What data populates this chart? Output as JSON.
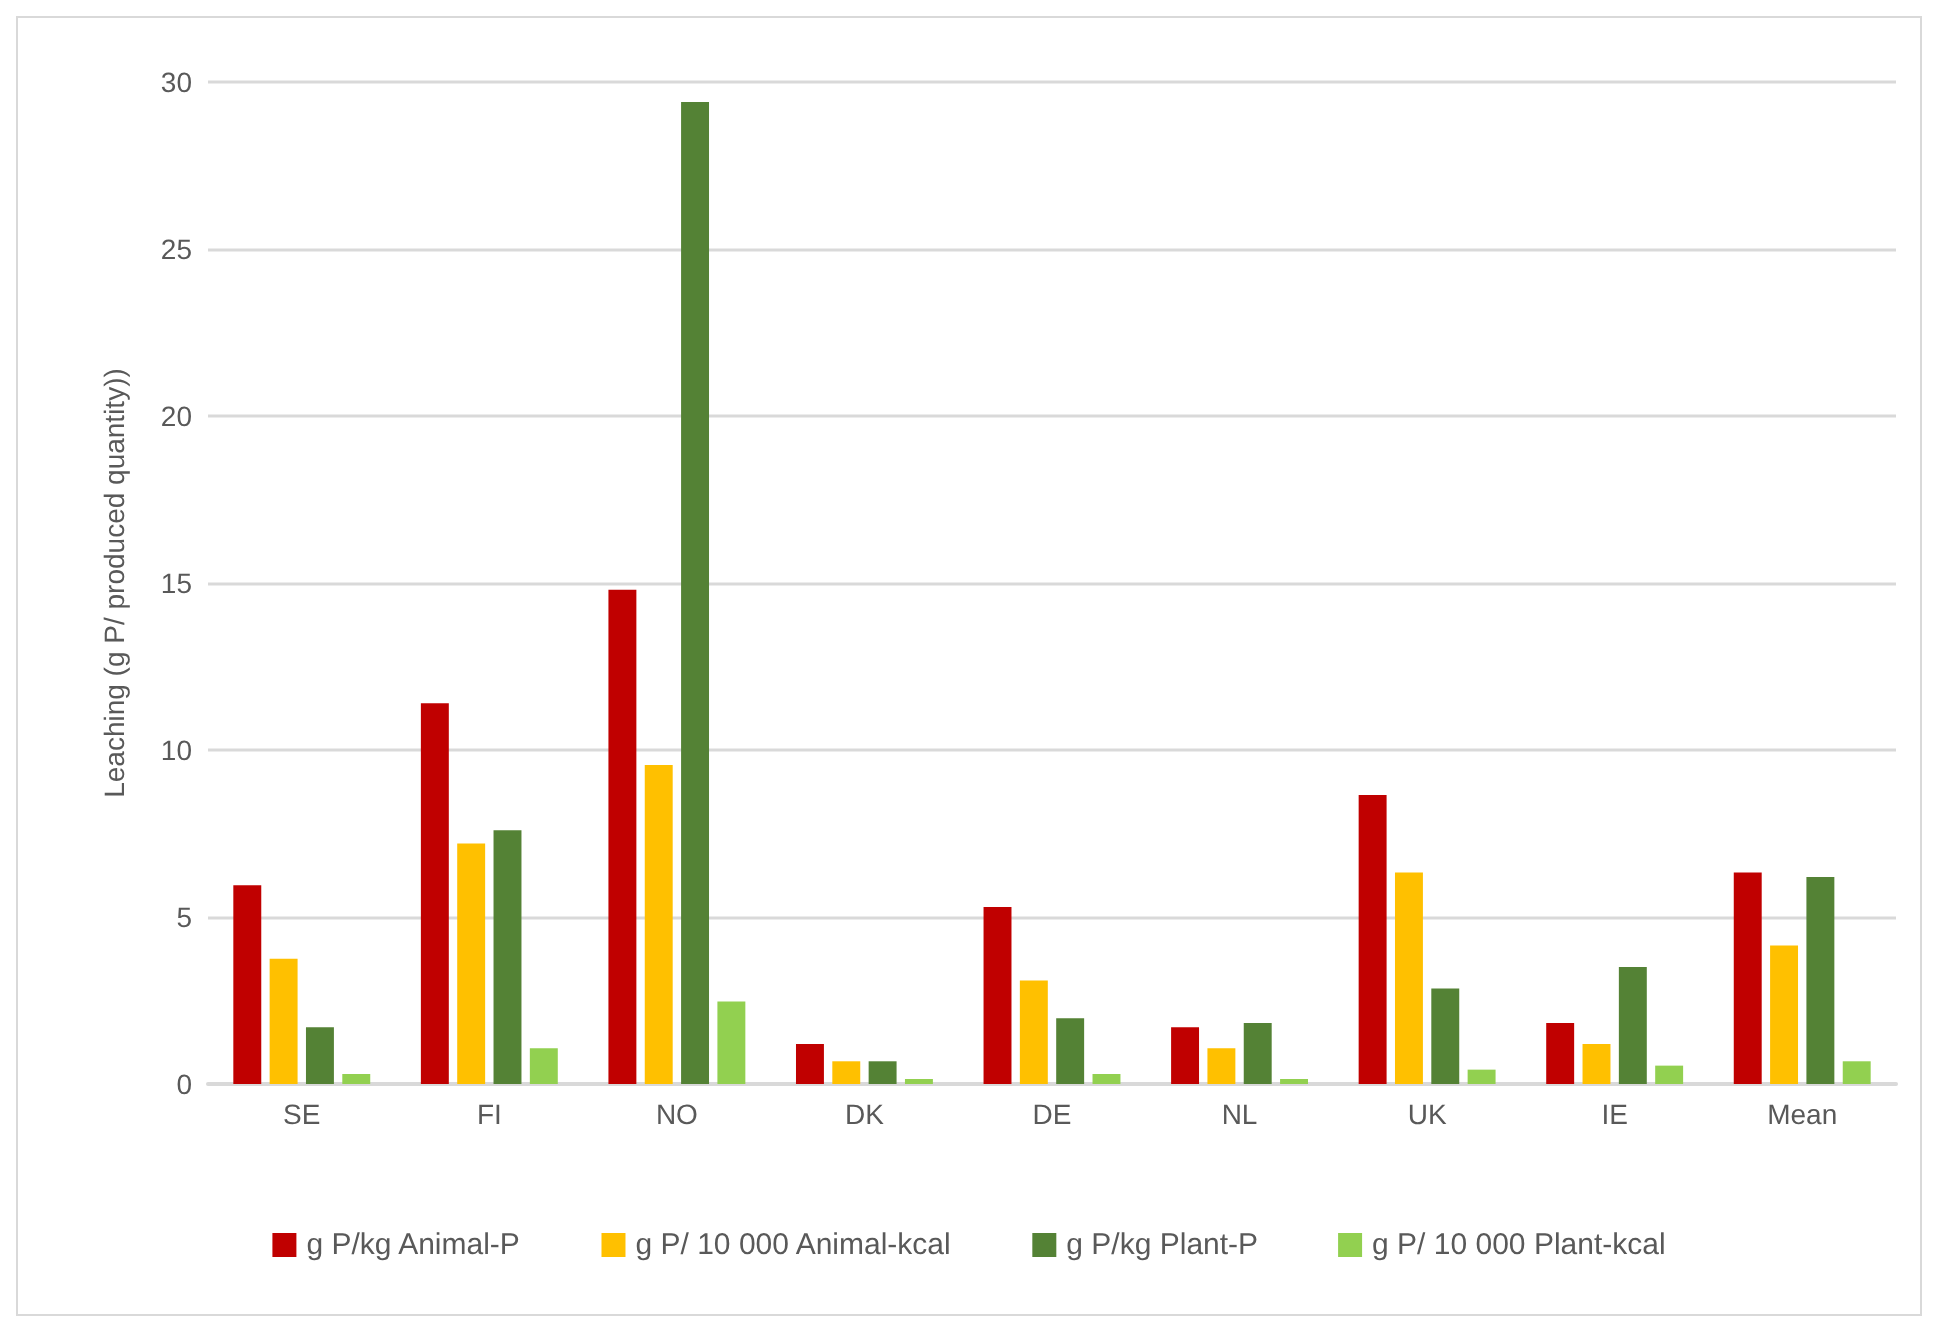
{
  "chart_data": {
    "type": "bar",
    "ylabel": "Leaching (g P/ produced quantity))",
    "categories": [
      "SE",
      "FI",
      "NO",
      "DK",
      "DE",
      "NL",
      "UK",
      "IE",
      "Mean"
    ],
    "series": [
      {
        "name": "g P/kg Animal-P",
        "color": "#c00000",
        "values": [
          5.95,
          11.4,
          14.8,
          1.2,
          5.3,
          1.7,
          8.65,
          1.83,
          6.33
        ]
      },
      {
        "name": "g P/ 10 000 Animal-kcal",
        "color": "#ffc000",
        "values": [
          3.75,
          7.2,
          9.55,
          0.68,
          3.1,
          1.07,
          6.33,
          1.2,
          4.15
        ]
      },
      {
        "name": "g P/kg Plant-P",
        "color": "#548235",
        "values": [
          1.7,
          7.6,
          29.4,
          0.68,
          1.97,
          1.83,
          2.86,
          3.5,
          6.2
        ]
      },
      {
        "name": "g P/ 10 000 Plant-kcal",
        "color": "#92d050",
        "values": [
          0.3,
          1.07,
          2.47,
          0.15,
          0.3,
          0.15,
          0.43,
          0.55,
          0.68
        ]
      }
    ],
    "ylim": [
      0,
      30
    ],
    "yticks": [
      0,
      5,
      10,
      15,
      20,
      25,
      30
    ],
    "grid": "y",
    "legend": "bottom"
  }
}
